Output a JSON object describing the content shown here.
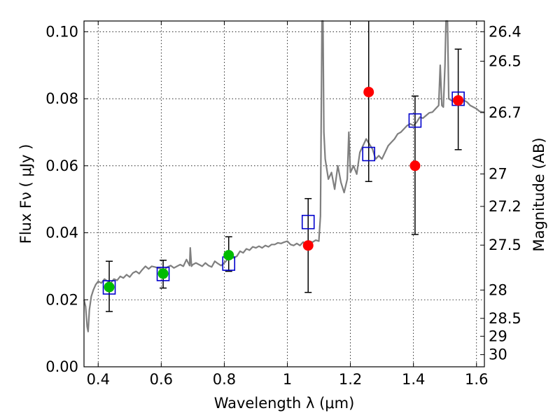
{
  "chart_data": {
    "type": "scatter",
    "xlabel": "Wavelength  λ (μm)",
    "ylabel": "Flux  Fν  ( μJy )",
    "y2label": "Magnitude (AB)",
    "xlim": [
      0.355,
      1.625
    ],
    "ylim": [
      0.0,
      0.1032
    ],
    "x_ticks": [
      0.4,
      0.6,
      0.8,
      1.0,
      1.2,
      1.4,
      1.6
    ],
    "x_tick_labels": [
      "0.4",
      "0.6",
      "0.8",
      "1",
      "1.2",
      "1.4",
      "1.6"
    ],
    "y_ticks": [
      0.0,
      0.02,
      0.04,
      0.06,
      0.08,
      0.1
    ],
    "y_tick_labels": [
      "0.00",
      "0.02",
      "0.04",
      "0.06",
      "0.08",
      "0.10"
    ],
    "mag_ticks": [
      "26.4",
      "26.5",
      "26.7",
      "27",
      "27.2",
      "27.5",
      "28",
      "28.5",
      "29",
      "30"
    ],
    "grid": true,
    "colors": {
      "spectrum": "#7f7f7f",
      "model_square": "#0000cc",
      "observed_red": "#ff0000",
      "observed_green": "#00bb00",
      "error_bar": "#000000"
    },
    "model_squares": [
      {
        "x": 0.435,
        "y": 0.0237
      },
      {
        "x": 0.606,
        "y": 0.0277
      },
      {
        "x": 0.814,
        "y": 0.0308
      },
      {
        "x": 1.066,
        "y": 0.0432
      },
      {
        "x": 1.258,
        "y": 0.0635
      },
      {
        "x": 1.405,
        "y": 0.0735
      },
      {
        "x": 1.542,
        "y": 0.08
      }
    ],
    "observed_points": [
      {
        "x": 0.435,
        "y": 0.0238,
        "yerr_low": 0.0165,
        "yerr_high": 0.0315,
        "color": "green"
      },
      {
        "x": 0.606,
        "y": 0.0278,
        "yerr_low": 0.0235,
        "yerr_high": 0.0318,
        "color": "green"
      },
      {
        "x": 0.814,
        "y": 0.0333,
        "yerr_low": 0.0285,
        "yerr_high": 0.0388,
        "color": "green"
      },
      {
        "x": 1.066,
        "y": 0.0362,
        "yerr_low": 0.0222,
        "yerr_high": 0.0502,
        "color": "red"
      },
      {
        "x": 1.258,
        "y": 0.082,
        "yerr_low": 0.0553,
        "yerr_high": 0.1032,
        "color": "red"
      },
      {
        "x": 1.405,
        "y": 0.06,
        "yerr_low": 0.0395,
        "yerr_high": 0.0808,
        "color": "red"
      },
      {
        "x": 1.542,
        "y": 0.0795,
        "yerr_low": 0.0648,
        "yerr_high": 0.0948,
        "color": "red"
      }
    ],
    "spectrum": [
      [
        0.355,
        0.02
      ],
      [
        0.36,
        0.018
      ],
      [
        0.365,
        0.012
      ],
      [
        0.368,
        0.0105
      ],
      [
        0.372,
        0.017
      ],
      [
        0.378,
        0.021
      ],
      [
        0.385,
        0.023
      ],
      [
        0.392,
        0.0245
      ],
      [
        0.4,
        0.0255
      ],
      [
        0.41,
        0.025
      ],
      [
        0.42,
        0.0262
      ],
      [
        0.43,
        0.0255
      ],
      [
        0.44,
        0.025
      ],
      [
        0.45,
        0.0262
      ],
      [
        0.46,
        0.0258
      ],
      [
        0.47,
        0.027
      ],
      [
        0.48,
        0.0265
      ],
      [
        0.49,
        0.0275
      ],
      [
        0.5,
        0.0268
      ],
      [
        0.51,
        0.028
      ],
      [
        0.52,
        0.0285
      ],
      [
        0.53,
        0.0278
      ],
      [
        0.54,
        0.029
      ],
      [
        0.55,
        0.03
      ],
      [
        0.56,
        0.0292
      ],
      [
        0.57,
        0.03
      ],
      [
        0.58,
        0.0298
      ],
      [
        0.59,
        0.0295
      ],
      [
        0.6,
        0.0292
      ],
      [
        0.61,
        0.029
      ],
      [
        0.62,
        0.0298
      ],
      [
        0.63,
        0.0302
      ],
      [
        0.64,
        0.0295
      ],
      [
        0.65,
        0.03
      ],
      [
        0.66,
        0.0305
      ],
      [
        0.67,
        0.03
      ],
      [
        0.68,
        0.032
      ],
      [
        0.69,
        0.0302
      ],
      [
        0.692,
        0.0355
      ],
      [
        0.696,
        0.03
      ],
      [
        0.7,
        0.0305
      ],
      [
        0.71,
        0.031
      ],
      [
        0.72,
        0.0305
      ],
      [
        0.73,
        0.03
      ],
      [
        0.74,
        0.031
      ],
      [
        0.75,
        0.0302
      ],
      [
        0.76,
        0.0298
      ],
      [
        0.77,
        0.0315
      ],
      [
        0.78,
        0.0308
      ],
      [
        0.79,
        0.0302
      ],
      [
        0.8,
        0.031
      ],
      [
        0.81,
        0.032
      ],
      [
        0.82,
        0.0328
      ],
      [
        0.83,
        0.0325
      ],
      [
        0.84,
        0.033
      ],
      [
        0.85,
        0.0345
      ],
      [
        0.86,
        0.034
      ],
      [
        0.87,
        0.0352
      ],
      [
        0.88,
        0.0348
      ],
      [
        0.89,
        0.0358
      ],
      [
        0.9,
        0.0355
      ],
      [
        0.91,
        0.036
      ],
      [
        0.92,
        0.0355
      ],
      [
        0.93,
        0.0362
      ],
      [
        0.94,
        0.0358
      ],
      [
        0.95,
        0.0365
      ],
      [
        0.96,
        0.0365
      ],
      [
        0.97,
        0.037
      ],
      [
        0.98,
        0.0368
      ],
      [
        0.99,
        0.0372
      ],
      [
        1.0,
        0.0375
      ],
      [
        1.01,
        0.0365
      ],
      [
        1.02,
        0.0362
      ],
      [
        1.03,
        0.0368
      ],
      [
        1.04,
        0.0362
      ],
      [
        1.05,
        0.0372
      ],
      [
        1.06,
        0.0368
      ],
      [
        1.07,
        0.0375
      ],
      [
        1.08,
        0.0372
      ],
      [
        1.09,
        0.0378
      ],
      [
        1.1,
        0.0375
      ],
      [
        1.105,
        0.045
      ],
      [
        1.108,
        0.08
      ],
      [
        1.11,
        0.1032
      ],
      [
        1.113,
        0.1032
      ],
      [
        1.116,
        0.07
      ],
      [
        1.12,
        0.062
      ],
      [
        1.13,
        0.056
      ],
      [
        1.14,
        0.058
      ],
      [
        1.15,
        0.053
      ],
      [
        1.16,
        0.06
      ],
      [
        1.17,
        0.055
      ],
      [
        1.18,
        0.052
      ],
      [
        1.19,
        0.056
      ],
      [
        1.195,
        0.07
      ],
      [
        1.2,
        0.058
      ],
      [
        1.21,
        0.06
      ],
      [
        1.22,
        0.0575
      ],
      [
        1.23,
        0.064
      ],
      [
        1.24,
        0.066
      ],
      [
        1.25,
        0.068
      ],
      [
        1.26,
        0.0665
      ],
      [
        1.27,
        0.065
      ],
      [
        1.28,
        0.062
      ],
      [
        1.29,
        0.063
      ],
      [
        1.3,
        0.062
      ],
      [
        1.31,
        0.064
      ],
      [
        1.32,
        0.066
      ],
      [
        1.33,
        0.067
      ],
      [
        1.34,
        0.068
      ],
      [
        1.35,
        0.0695
      ],
      [
        1.36,
        0.07
      ],
      [
        1.37,
        0.071
      ],
      [
        1.38,
        0.072
      ],
      [
        1.39,
        0.0725
      ],
      [
        1.4,
        0.072
      ],
      [
        1.41,
        0.073
      ],
      [
        1.42,
        0.0745
      ],
      [
        1.43,
        0.0742
      ],
      [
        1.44,
        0.075
      ],
      [
        1.45,
        0.0758
      ],
      [
        1.46,
        0.076
      ],
      [
        1.47,
        0.077
      ],
      [
        1.48,
        0.078
      ],
      [
        1.485,
        0.09
      ],
      [
        1.49,
        0.078
      ],
      [
        1.495,
        0.0775
      ],
      [
        1.5,
        0.09
      ],
      [
        1.503,
        0.1032
      ],
      [
        1.508,
        0.1032
      ],
      [
        1.512,
        0.08
      ],
      [
        1.52,
        0.0795
      ],
      [
        1.53,
        0.079
      ],
      [
        1.54,
        0.0785
      ],
      [
        1.55,
        0.079
      ],
      [
        1.56,
        0.0795
      ],
      [
        1.57,
        0.079
      ],
      [
        1.58,
        0.078
      ],
      [
        1.59,
        0.0775
      ],
      [
        1.6,
        0.077
      ],
      [
        1.61,
        0.0762
      ],
      [
        1.62,
        0.076
      ],
      [
        1.625,
        0.076
      ]
    ]
  }
}
